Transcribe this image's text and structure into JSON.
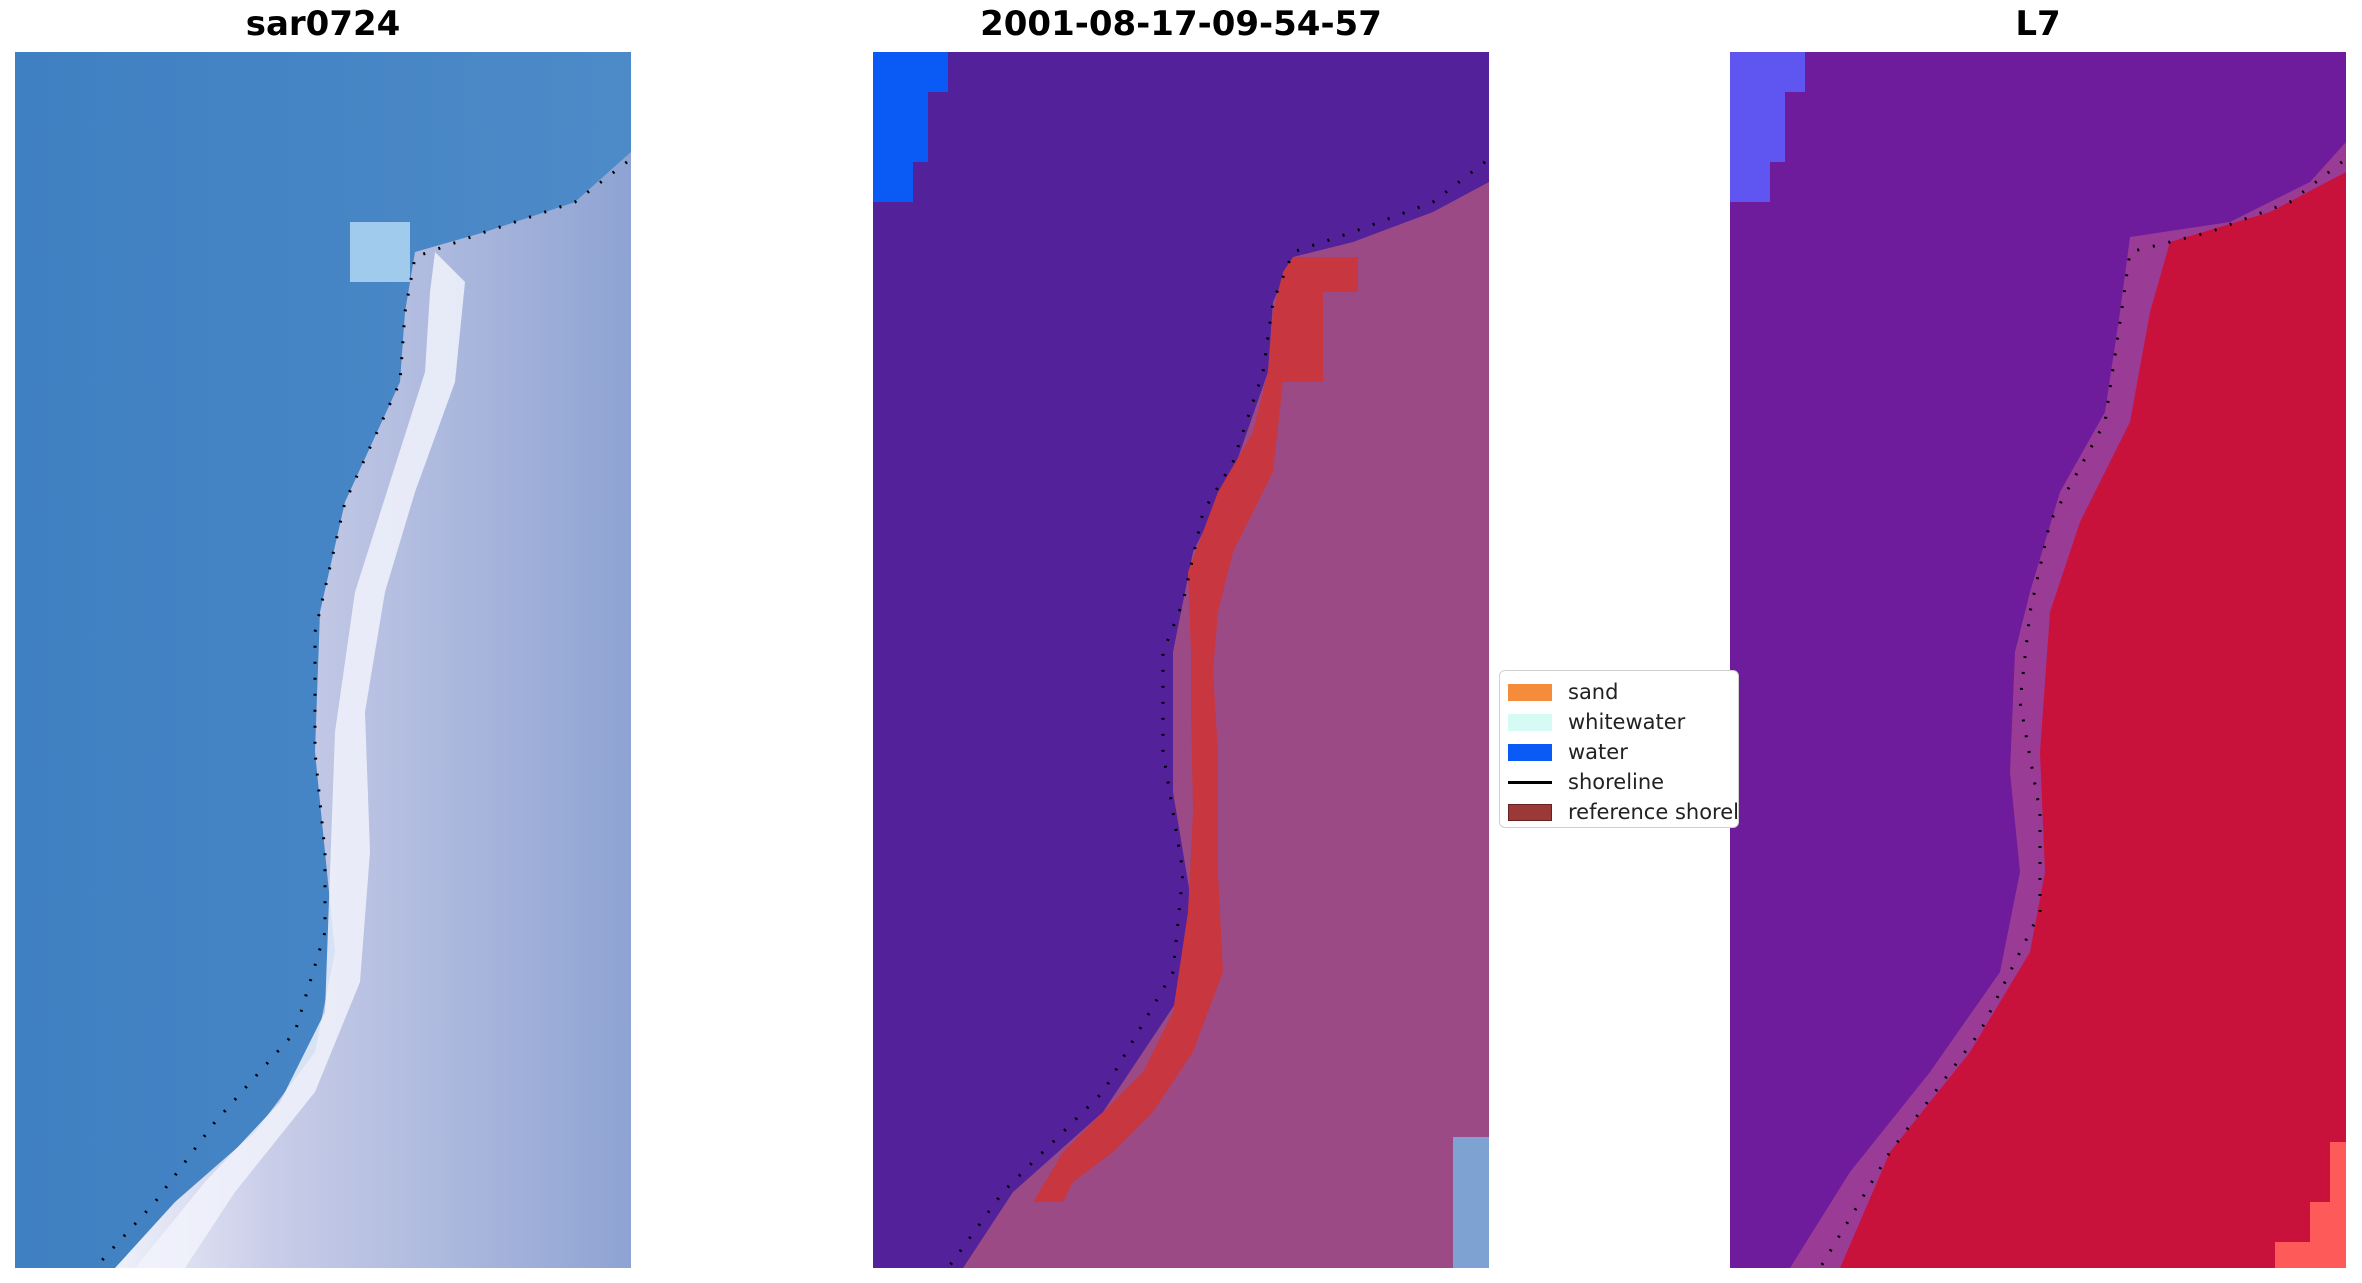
{
  "panels": [
    {
      "title": "sar0724"
    },
    {
      "title": "2001-08-17-09-54-57"
    },
    {
      "title": "L7"
    }
  ],
  "legend": {
    "items": [
      {
        "label": "sand",
        "color": "#f58c3c"
      },
      {
        "label": "whitewater",
        "color": "#d6fbf5"
      },
      {
        "label": "water",
        "color": "#0a5af5"
      },
      {
        "label": "shoreline",
        "color": "#000000"
      },
      {
        "label": "reference shoreline",
        "color": "#9b3838"
      }
    ]
  },
  "colors": {
    "sea_rgb": "#4a86c4",
    "beach_rgb": "#d8dcef",
    "water_class": "#53219a",
    "land_class": "#9c4a86",
    "reference_band": "#c8373f",
    "water_pixel": "#0a5af5",
    "l7_water": "#6e1c9c",
    "l7_land": "#c8123c"
  }
}
